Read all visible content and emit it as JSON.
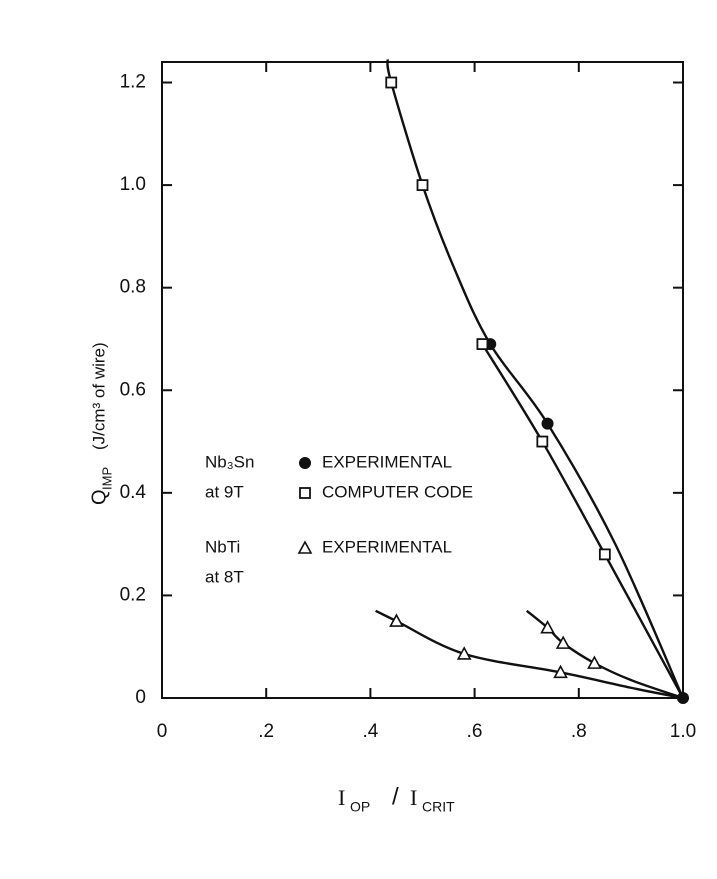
{
  "chart_data": {
    "type": "scatter",
    "xlim": [
      0,
      1.0
    ],
    "ylim": [
      0,
      1.24
    ],
    "xticks": [
      0,
      {
        "value": 0.2,
        "label": ".2"
      },
      {
        "value": 0.4,
        "label": ".4"
      },
      {
        "value": 0.6,
        "label": ".6"
      },
      {
        "value": 0.8,
        "label": ".8"
      },
      {
        "value": 1.0,
        "label": "1.0"
      }
    ],
    "yticks": [
      0,
      0.2,
      0.4,
      0.6,
      0.8,
      {
        "value": 1.0,
        "label": "1.0"
      },
      1.2
    ],
    "grid": false,
    "x_label": {
      "numerator": "I",
      "numerator_sub": "OP",
      "separator": "/",
      "denominator": "I",
      "denominator_sub": "CRIT"
    },
    "y_label": {
      "symbol": "Q",
      "subscript": "IMP",
      "units": "(J/cm³  of wire)"
    },
    "legend_groups": [
      {
        "material": "Nb₃Sn",
        "condition": "at 9T",
        "series": [
          0,
          1
        ]
      },
      {
        "material": "NbTi",
        "condition": "at 8T",
        "series": [
          2
        ]
      }
    ],
    "series": [
      {
        "name": "EXPERIMENTAL",
        "marker": "circle-filled",
        "color": "#111111",
        "x": [
          0.63,
          0.74,
          1.0
        ],
        "values": [
          0.69,
          0.535,
          0
        ]
      },
      {
        "name": "COMPUTER CODE",
        "marker": "square",
        "color": "#111111",
        "x": [
          0.44,
          0.5,
          0.615,
          0.73,
          0.85
        ],
        "values": [
          1.2,
          1.0,
          0.69,
          0.5,
          0.28
        ]
      },
      {
        "name": "EXPERIMENTAL",
        "marker": "triangle",
        "color": "#111111",
        "x": [
          0.45,
          0.58,
          0.765,
          0.74,
          0.77,
          0.83
        ],
        "values": [
          0.15,
          0.086,
          0.05,
          0.137,
          0.107,
          0.068
        ]
      }
    ],
    "curves": [
      {
        "x": [
          0.433,
          0.44,
          0.5,
          0.56,
          0.63,
          0.74,
          0.87,
          1.0
        ],
        "y": [
          1.245,
          1.2,
          1.0,
          0.84,
          0.69,
          0.535,
          0.3,
          0
        ]
      },
      {
        "x": [
          0.615,
          0.73,
          0.85,
          1.0
        ],
        "y": [
          0.69,
          0.5,
          0.28,
          0
        ]
      },
      {
        "x": [
          0.41,
          0.45,
          0.58,
          0.765,
          0.9,
          1.0
        ],
        "y": [
          0.17,
          0.15,
          0.086,
          0.05,
          0.02,
          0
        ]
      },
      {
        "x": [
          0.7,
          0.74,
          0.77,
          0.83,
          0.9,
          1.0
        ],
        "y": [
          0.17,
          0.137,
          0.107,
          0.068,
          0.035,
          0
        ]
      }
    ]
  }
}
